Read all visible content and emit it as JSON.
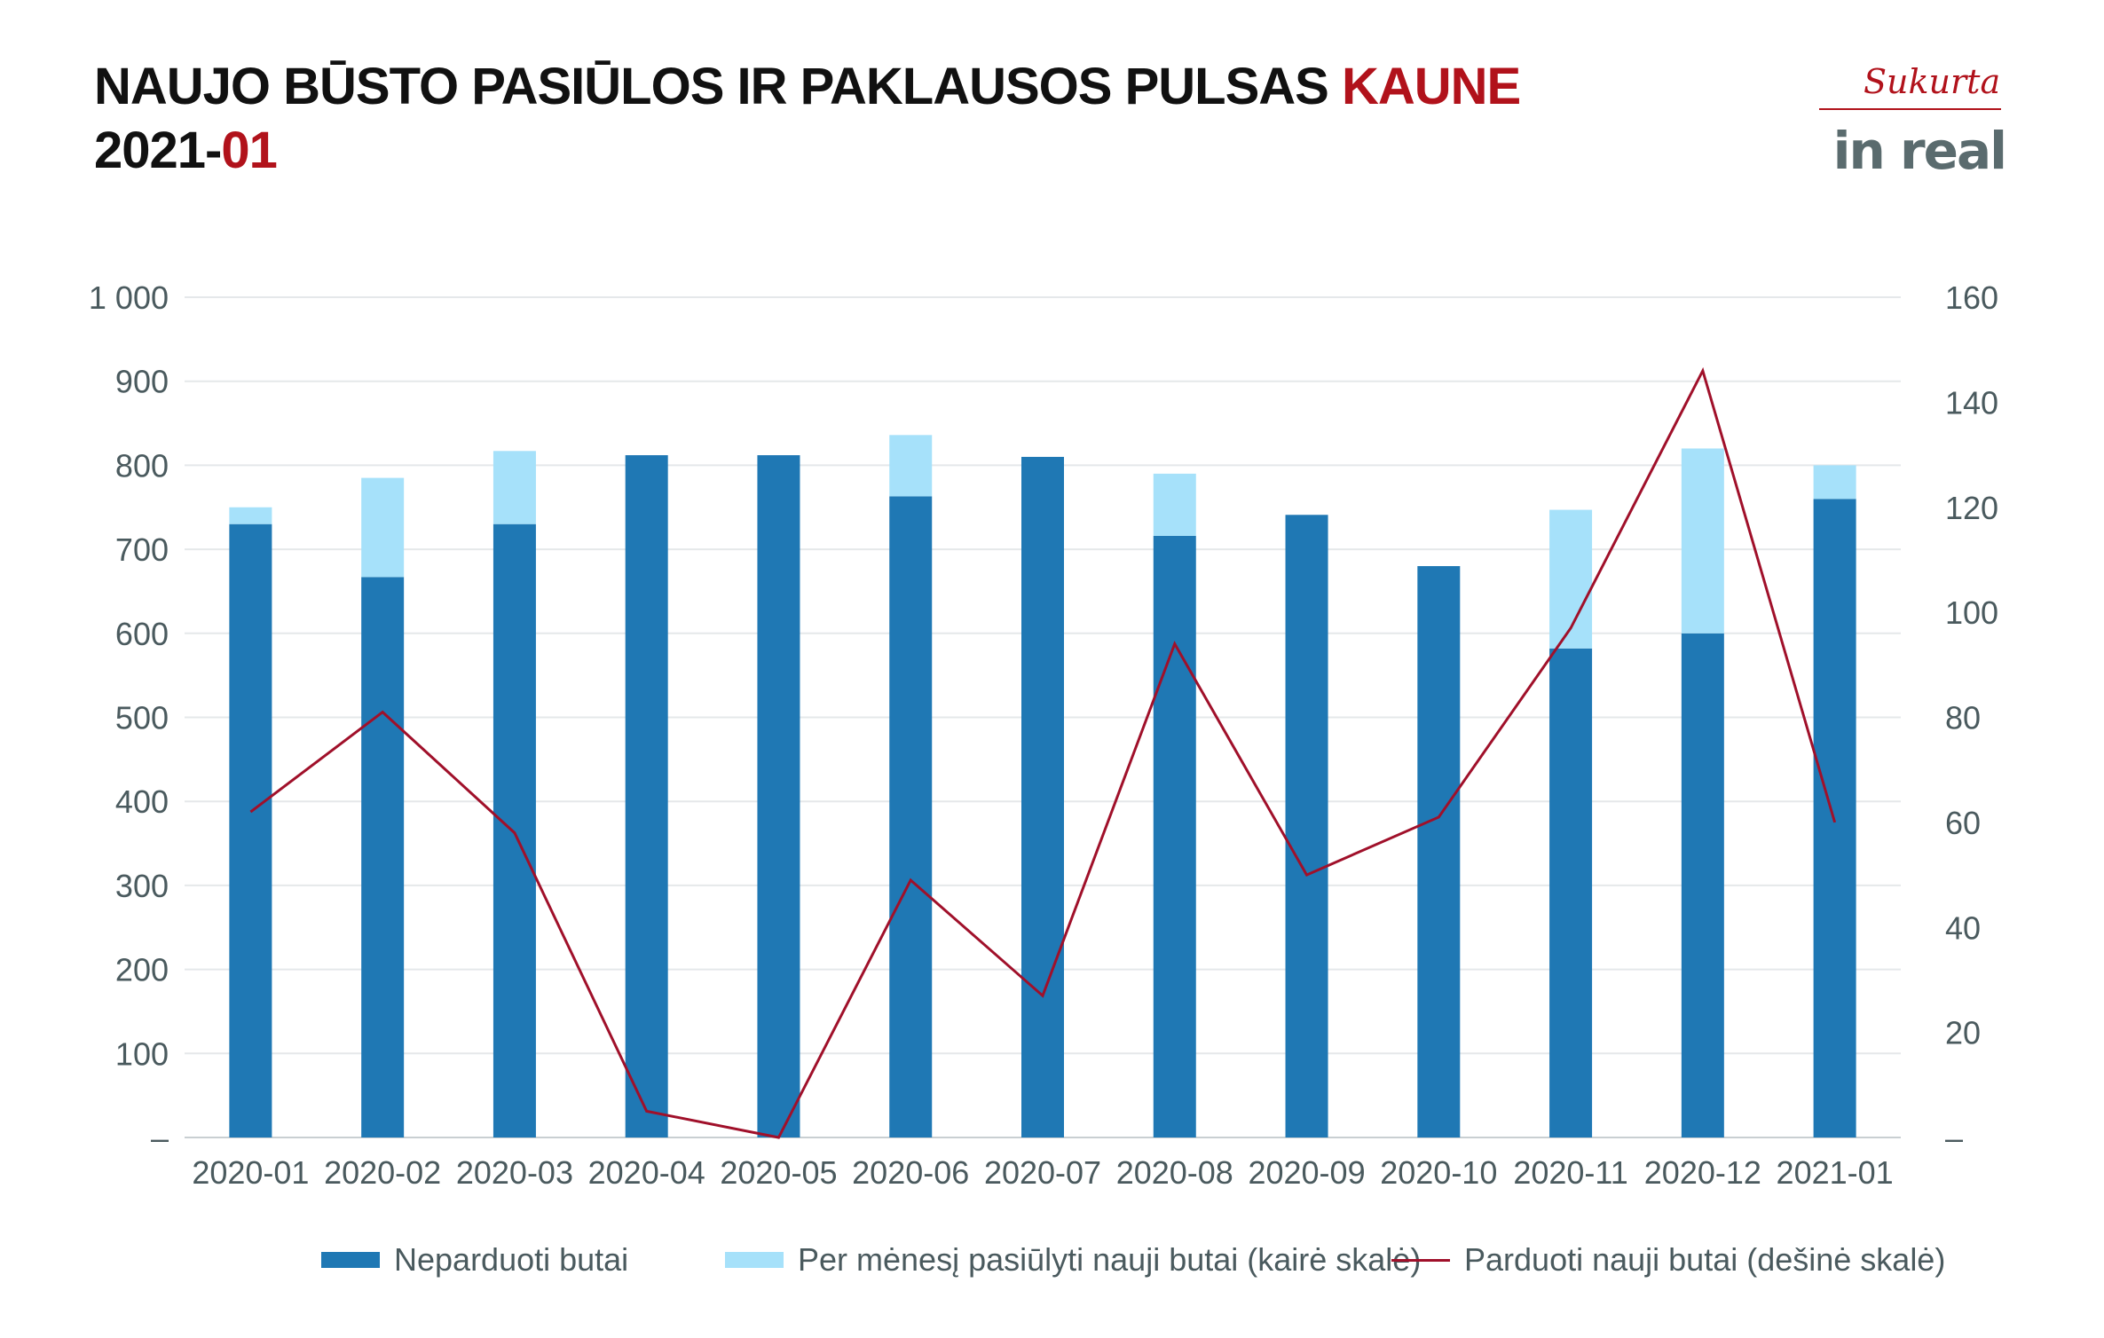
{
  "header": {
    "title_line1": "NAUJO BŪSTO PASIŪLOS IR PAKLAUSOS PULSAS ",
    "title_city": "KAUNE",
    "title_year": "2021-",
    "title_month": "01"
  },
  "logo": {
    "script": "Sukurta",
    "word": "in real"
  },
  "colors": {
    "unsold": "#1f78b4",
    "offered": "#a6e1fa",
    "sold_line": "#a0102a",
    "accent": "#b1121b",
    "grid": "#e5e8ea",
    "text": "#4a5a5e"
  },
  "chart_data": {
    "type": "bar",
    "stacked": true,
    "categories": [
      "2020-01",
      "2020-02",
      "2020-03",
      "2020-04",
      "2020-05",
      "2020-06",
      "2020-07",
      "2020-08",
      "2020-09",
      "2020-10",
      "2020-11",
      "2020-12",
      "2021-01"
    ],
    "series": [
      {
        "name": "Neparduoti butai",
        "type": "bar",
        "axis": "left",
        "values": [
          730,
          667,
          730,
          812,
          812,
          763,
          810,
          716,
          741,
          680,
          582,
          600,
          760
        ]
      },
      {
        "name": "Per mėnesį pasiūlyti nauji butai (kairė skalė)",
        "type": "bar",
        "axis": "left",
        "values": [
          20,
          118,
          87,
          0,
          0,
          73,
          0,
          74,
          0,
          0,
          165,
          220,
          40
        ]
      },
      {
        "name": "Parduoti nauji butai (dešinė skalė)",
        "type": "line",
        "axis": "right",
        "values": [
          62,
          81,
          58,
          5,
          0,
          49,
          27,
          94,
          50,
          61,
          97,
          146,
          60
        ]
      }
    ],
    "y_left": {
      "range": [
        0,
        1000
      ],
      "ticks": [
        "–",
        "100",
        "200",
        "300",
        "400",
        "500",
        "600",
        "700",
        "800",
        "900",
        "1 000"
      ]
    },
    "y_right": {
      "range": [
        0,
        160
      ],
      "ticks": [
        "–",
        "20",
        "40",
        "60",
        "80",
        "100",
        "120",
        "140",
        "160"
      ]
    },
    "grid": true,
    "legend_position": "bottom"
  },
  "legend": {
    "unsold": "Neparduoti butai",
    "offered": "Per mėnesį pasiūlyti nauji butai (kairė skalė)",
    "sold": "Parduoti nauji butai (dešinė skalė)"
  }
}
